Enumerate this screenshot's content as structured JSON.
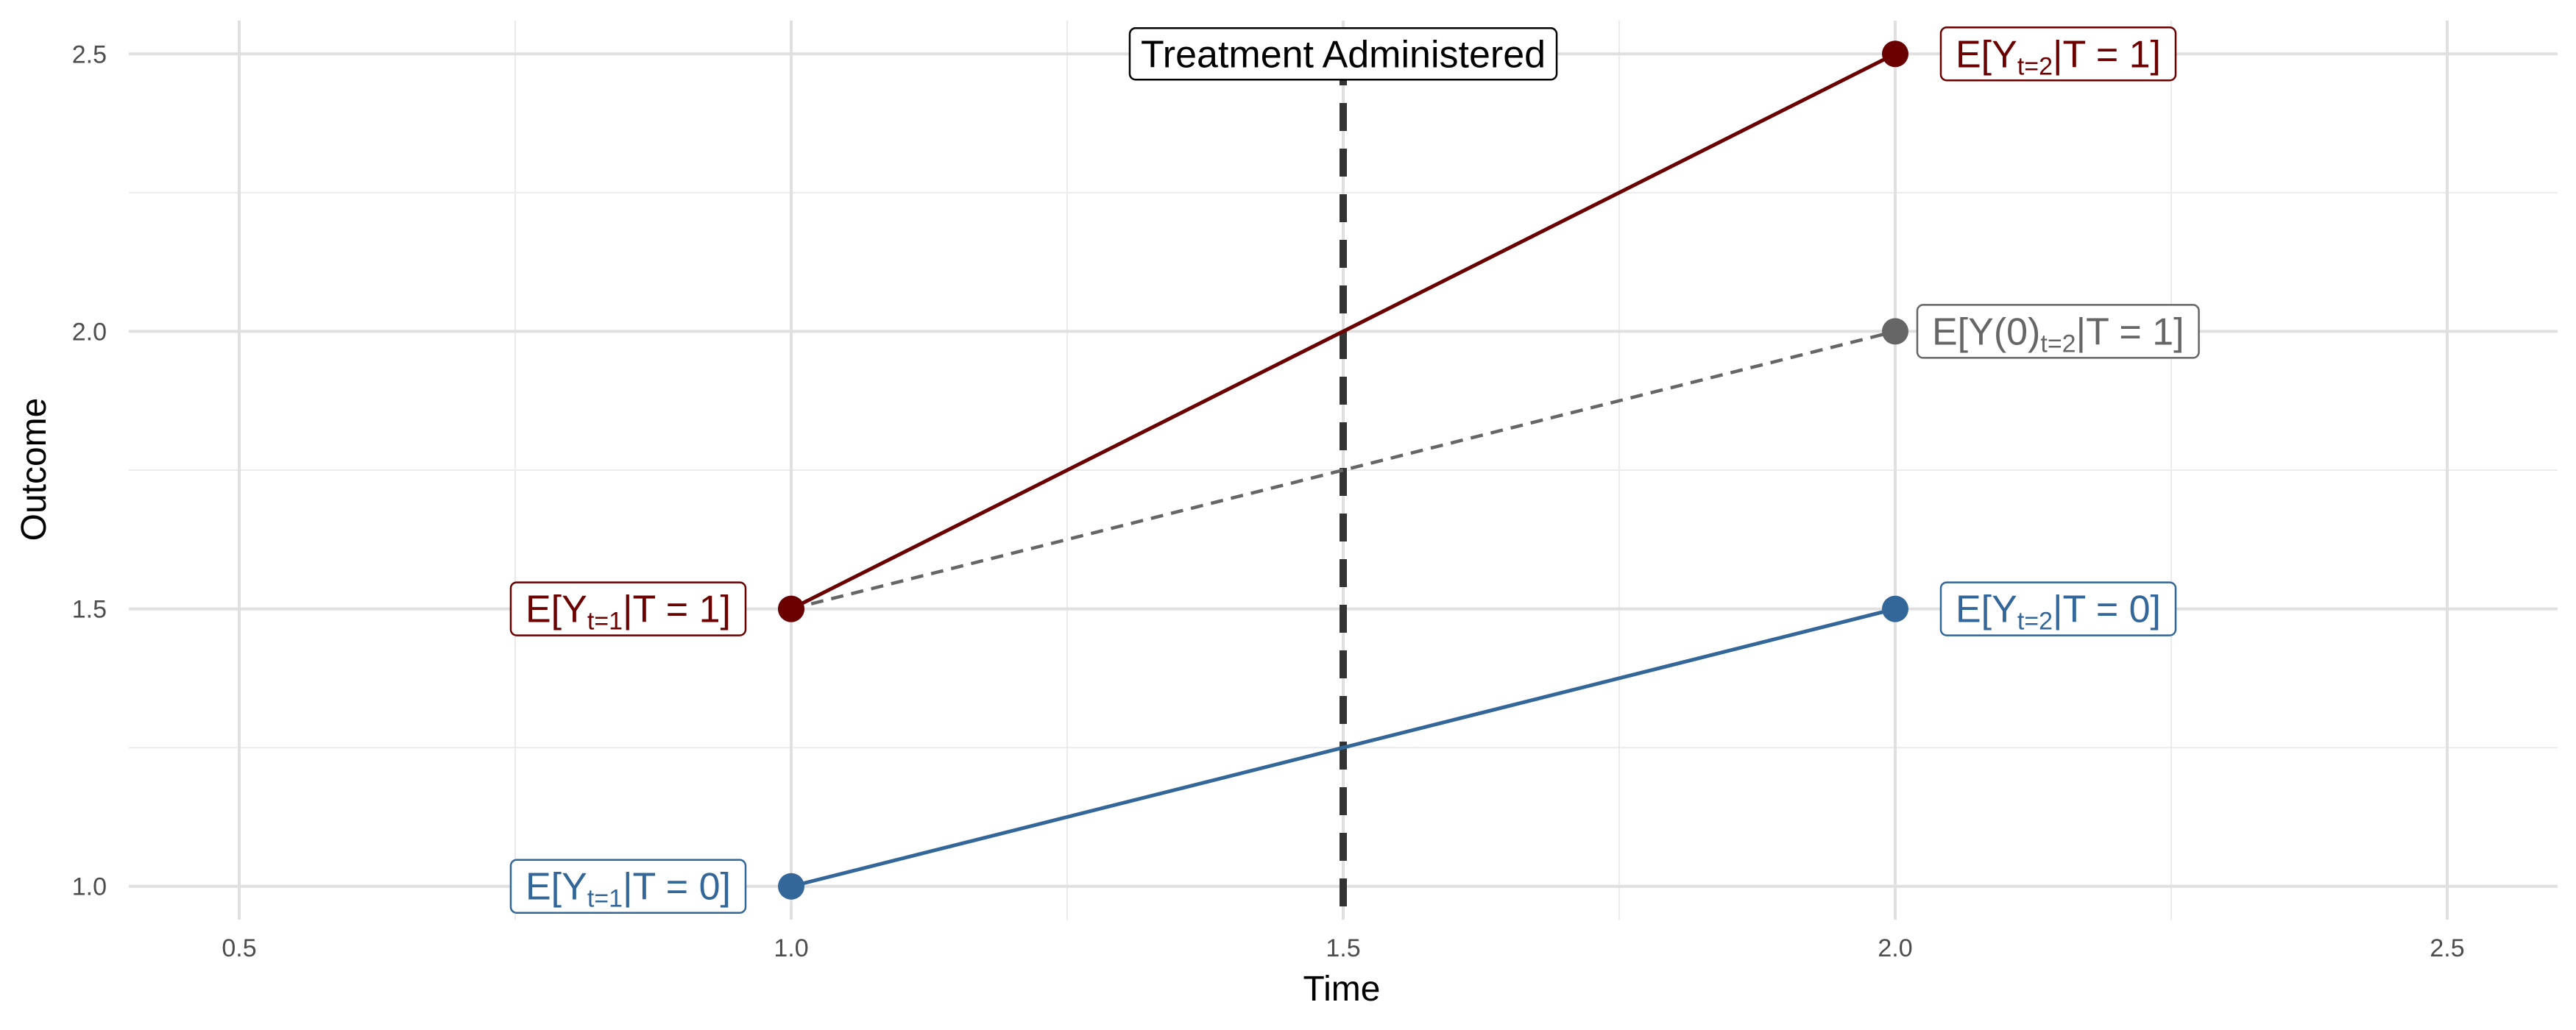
{
  "chart_data": {
    "type": "line",
    "xlabel": "Time",
    "ylabel": "Outcome",
    "xlim": [
      0.4,
      2.6
    ],
    "ylim": [
      0.94,
      2.56
    ],
    "x_ticks": [
      0.5,
      1.0,
      1.5,
      2.0,
      2.5
    ],
    "x_tick_labels": [
      "0.5",
      "1.0",
      "1.5",
      "2.0",
      "2.5"
    ],
    "y_ticks": [
      1.0,
      1.5,
      2.0,
      2.5
    ],
    "y_tick_labels": [
      "1.0",
      "1.5",
      "2.0",
      "2.5"
    ],
    "grid": true,
    "legend": "none",
    "series": [
      {
        "id": "treated",
        "color": "#6B0000",
        "line_style": "solid",
        "x": [
          1.0,
          2.0
        ],
        "y": [
          1.5,
          2.5
        ],
        "point_labels": [
          {
            "pre": "E[Y",
            "sub": "t=1",
            "post": "|T = 1]"
          },
          {
            "pre": "E[Y",
            "sub": "t=2",
            "post": "|T = 1]"
          }
        ]
      },
      {
        "id": "counterfactual",
        "color": "#666666",
        "line_style": "dashed",
        "x": [
          1.0,
          2.0
        ],
        "y": [
          1.5,
          2.0
        ],
        "point_labels": [
          null,
          {
            "pre": "E[Y(0)",
            "sub": "t=2",
            "post": "|T = 1]"
          }
        ]
      },
      {
        "id": "control",
        "color": "#336699",
        "line_style": "solid",
        "x": [
          1.0,
          2.0
        ],
        "y": [
          1.0,
          1.5
        ],
        "point_labels": [
          {
            "pre": "E[Y",
            "sub": "t=1",
            "post": "|T = 0]"
          },
          {
            "pre": "E[Y",
            "sub": "t=2",
            "post": "|T = 0]"
          }
        ]
      }
    ],
    "vline": {
      "x": 1.5,
      "color": "#333333",
      "line_style": "dashed",
      "label": "Treatment Administered"
    }
  }
}
